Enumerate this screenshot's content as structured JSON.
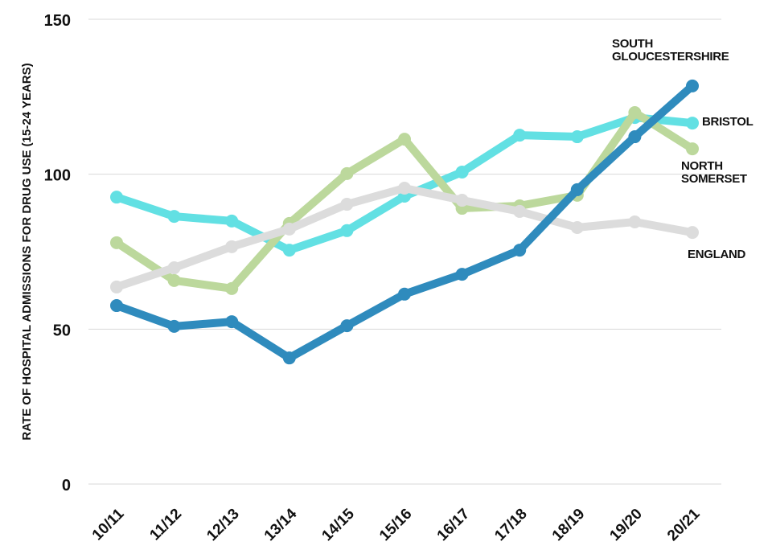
{
  "chart_data": {
    "type": "line",
    "ylabel": "RATE OF HOSPITAL ADMISSIONS FOR DRUG USE (15-24 YEARS)",
    "categories": [
      "10/11",
      "11/12",
      "12/13",
      "13/14",
      "14/15",
      "15/16",
      "16/17",
      "17/18",
      "18/19",
      "19/20",
      "20/21"
    ],
    "series": [
      {
        "name": "BRISTOL",
        "color": "#62e0e3",
        "values": [
          92.6,
          86.4,
          84.9,
          75.5,
          81.8,
          92.9,
          100.7,
          112.6,
          112.1,
          118.3,
          116.5
        ]
      },
      {
        "name": "NORTH SOMERSET",
        "color": "#bcd89c",
        "values": [
          77.9,
          65.7,
          63.1,
          84.1,
          100.2,
          111.3,
          89.0,
          89.8,
          93.2,
          119.9,
          108.2
        ]
      },
      {
        "name": "ENGLAND",
        "color": "#dcdcdc",
        "values": [
          63.6,
          69.8,
          76.6,
          82.3,
          90.3,
          95.5,
          91.6,
          88.0,
          82.8,
          84.6,
          81.2
        ]
      },
      {
        "name": "SOUTH GLOUCESTERSHIRE",
        "color": "#2f8bbd",
        "values": [
          57.6,
          50.9,
          52.4,
          40.7,
          51.1,
          61.3,
          67.7,
          75.5,
          95.0,
          112.1,
          128.5
        ]
      }
    ],
    "ylim": [
      0,
      150
    ],
    "yticks": [
      0,
      50,
      100,
      150
    ],
    "grid": true
  }
}
